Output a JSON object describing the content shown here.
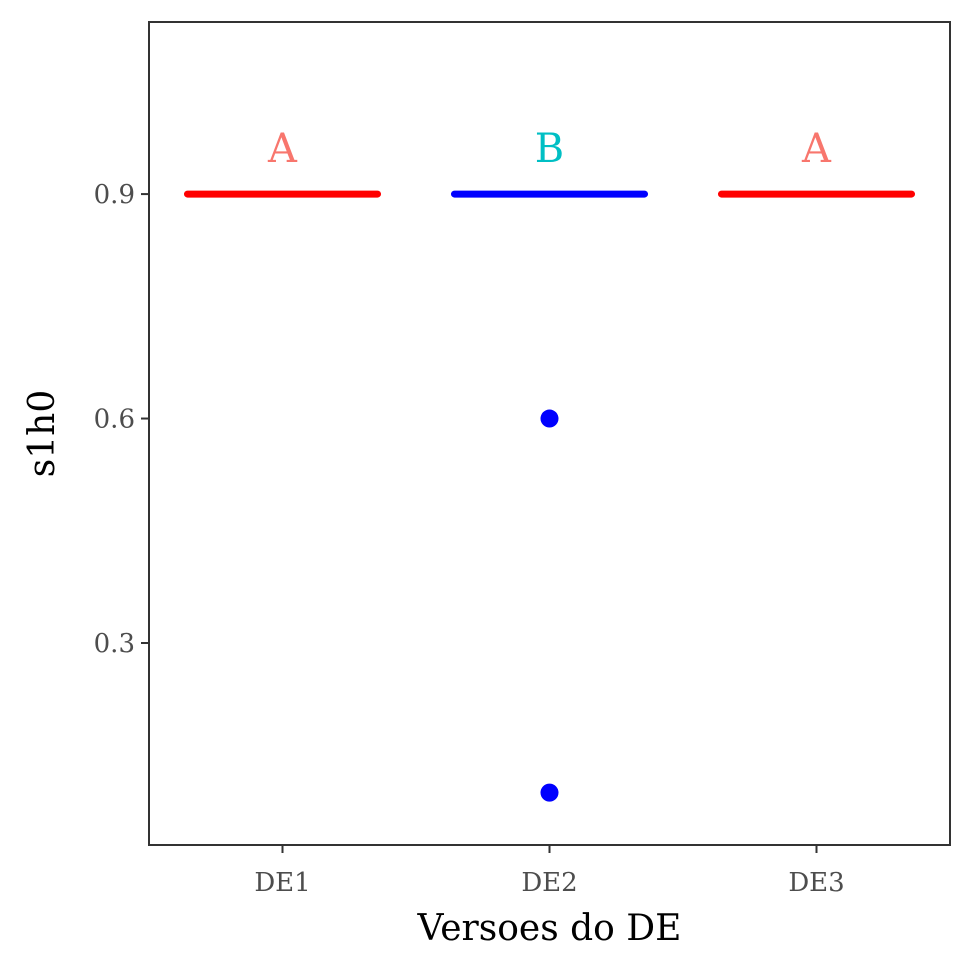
{
  "chart_data": {
    "type": "boxplot",
    "title": "",
    "xlabel": "Versoes do DE",
    "ylabel": "s1h0",
    "categories": [
      "DE1",
      "DE2",
      "DE3"
    ],
    "ylim": [
      0.03,
      1.13
    ],
    "yticks": [
      0.3,
      0.6,
      0.9
    ],
    "ytick_labels": [
      "0.3",
      "0.6",
      "0.9"
    ],
    "grid": false,
    "legend": "none",
    "boxes": [
      {
        "category": "DE1",
        "q1": 0.9,
        "median": 0.9,
        "q3": 0.9,
        "whisker_low": 0.9,
        "whisker_high": 0.9,
        "color": "#ff0000",
        "outliers": []
      },
      {
        "category": "DE2",
        "q1": 0.9,
        "median": 0.9,
        "q3": 0.9,
        "whisker_low": 0.9,
        "whisker_high": 0.9,
        "color": "#0000ff",
        "outliers": [
          0.6,
          0.1
        ]
      },
      {
        "category": "DE3",
        "q1": 0.9,
        "median": 0.9,
        "q3": 0.9,
        "whisker_low": 0.9,
        "whisker_high": 0.9,
        "color": "#ff0000",
        "outliers": []
      }
    ],
    "annotations": [
      {
        "category": "DE1",
        "text": "A",
        "y": 0.96,
        "color": "#f8766d"
      },
      {
        "category": "DE2",
        "text": "B",
        "y": 0.96,
        "color": "#00bfc4"
      },
      {
        "category": "DE3",
        "text": "A",
        "y": 0.96,
        "color": "#f8766d"
      }
    ]
  }
}
